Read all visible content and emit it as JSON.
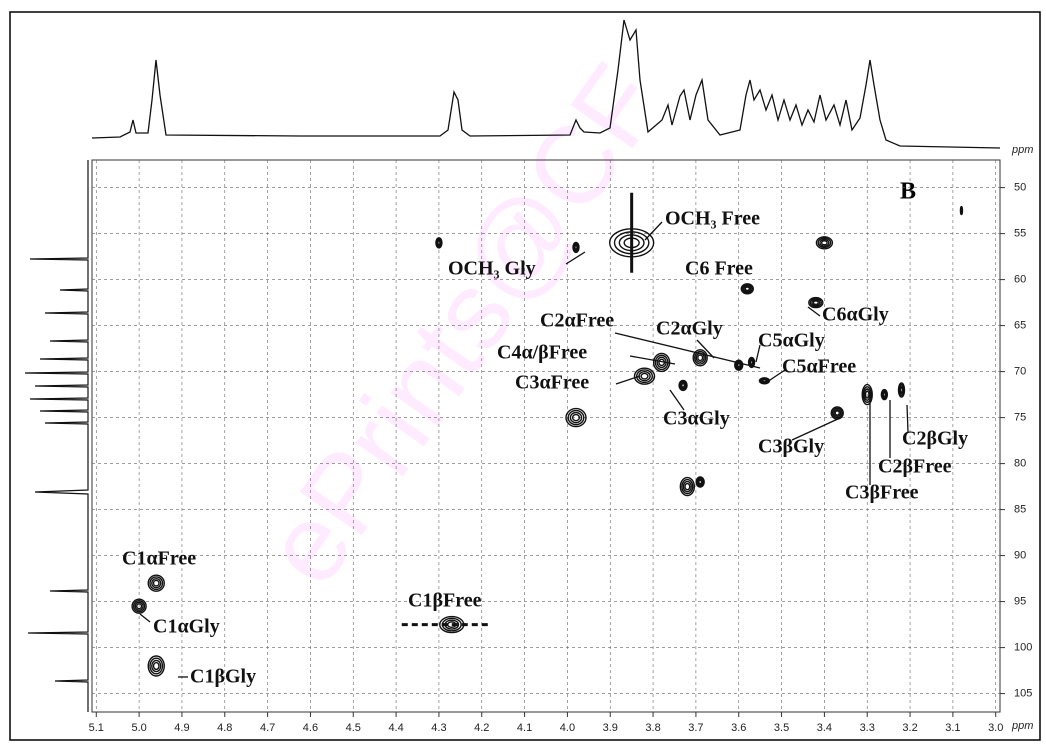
{
  "chart_data": {
    "type": "contour",
    "panel_label": "B",
    "x_axis_label": "ppm",
    "y_axis_label": "ppm",
    "watermark": "ePrints@CF",
    "xlim": [
      5.11,
      2.99
    ],
    "ylim": [
      107,
      47
    ],
    "xticks": [
      5.1,
      {
        "value": 5.0,
        "label": "5.0"
      },
      4.9,
      4.8,
      4.7,
      4.6,
      4.5,
      4.4,
      4.3,
      4.2,
      4.1,
      {
        "value": 4.0,
        "label": "4.0"
      },
      3.9,
      3.8,
      3.7,
      3.6,
      3.5,
      3.4,
      3.3,
      3.2,
      3.1,
      {
        "value": 3.0,
        "label": "3.0"
      }
    ],
    "yticks": [
      50,
      55,
      60,
      65,
      70,
      75,
      80,
      85,
      90,
      95,
      100,
      105
    ],
    "grid": true,
    "color": "#111111",
    "x": [
      3.85,
      4.3,
      3.98,
      3.4,
      3.08,
      3.58,
      3.42,
      3.78,
      3.69,
      3.6,
      3.57,
      3.54,
      3.82,
      3.73,
      3.98,
      3.37,
      3.3,
      3.26,
      3.22,
      3.72,
      3.69,
      4.96,
      5.0,
      4.96,
      4.27
    ],
    "values": [
      56,
      56,
      56.5,
      56,
      52.5,
      61,
      62.5,
      69,
      68.5,
      69.3,
      69,
      71,
      70.5,
      71.5,
      75,
      74.5,
      72.5,
      72.5,
      72,
      82.5,
      82,
      93,
      95.5,
      102,
      97.5
    ],
    "annotations": [
      "OCH₃ Free",
      "OCH₃ Gly",
      "C6 Free",
      "C6αGly",
      "C2αFree",
      "C2αGly",
      "C5αGly",
      "C4α/βFree",
      "C5αFree",
      "C3αFree",
      "C3αGly",
      "C3βGly",
      "C2βGly",
      "C2βFree",
      "C3βFree",
      "C1αFree",
      "C1βFree",
      "C1αGly",
      "C1βGly"
    ]
  }
}
